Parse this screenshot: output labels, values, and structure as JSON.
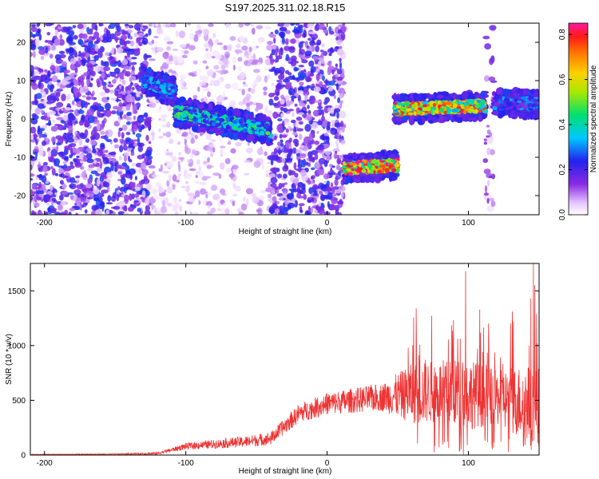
{
  "title": "S197.2025.311.02.18.R15",
  "colors": {
    "snr_line": "#ee3333",
    "background": "#ffffff",
    "axis": "#000000"
  },
  "colorbar": {
    "label": "Normalized spectral amplitude",
    "range": [
      0,
      0.85
    ],
    "ticks": [
      0.0,
      0.2,
      0.4,
      0.6,
      0.8
    ],
    "tick_labels": [
      "0.0",
      "0.2",
      "0.4",
      "0.6",
      "0.8"
    ],
    "colormap": "rainbow (white-violet-blue-cyan-green-yellow-orange-red-magenta)"
  },
  "chart_data": [
    {
      "type": "heatmap",
      "name": "spectrogram",
      "title": "S197.2025.311.02.18.R15",
      "xlabel": "Height of straight line (km)",
      "ylabel": "Frequency (Hz)",
      "xlim": [
        -210,
        150
      ],
      "ylim": [
        -25,
        25
      ],
      "xticks": [
        -200,
        -100,
        0,
        100
      ],
      "xtick_labels": [
        "-200",
        "-100",
        "0",
        "100"
      ],
      "yticks": [
        -20,
        -10,
        0,
        10,
        20
      ],
      "ytick_labels": [
        "-20",
        "-10",
        "0",
        "10",
        "20"
      ],
      "noise_regions": [
        {
          "x": [
            -210,
            -125
          ],
          "level": 0.15
        },
        {
          "x": [
            -125,
            -40
          ],
          "level": 0.05
        },
        {
          "x": [
            -40,
            12
          ],
          "level": 0.15
        },
        {
          "x": [
            112,
            118
          ],
          "level": 0.1
        }
      ],
      "bright_tracks": [
        {
          "x": [
            -130,
            -108
          ],
          "freq": [
            10,
            7
          ],
          "peak": 0.35
        },
        {
          "x": [
            -108,
            -40
          ],
          "freq": [
            2,
            -3
          ],
          "peak": 0.45
        },
        {
          "x": [
            12,
            50
          ],
          "freq": [
            -13,
            -12
          ],
          "peak": 0.85
        },
        {
          "x": [
            48,
            112
          ],
          "freq": [
            2.5,
            3.5
          ],
          "peak": 0.8
        },
        {
          "x": [
            118,
            150
          ],
          "freq": [
            4,
            4
          ],
          "peak": 0.3
        }
      ]
    },
    {
      "type": "line",
      "name": "snr",
      "xlabel": "Height of straight line (km)",
      "ylabel": "SNR (10 * v/v)",
      "xlim": [
        -210,
        150
      ],
      "ylim": [
        0,
        1750
      ],
      "xticks": [
        -200,
        -100,
        0,
        100
      ],
      "xtick_labels": [
        "-200",
        "-100",
        "0",
        "100"
      ],
      "yticks": [
        0,
        500,
        1000,
        1500
      ],
      "ytick_labels": [
        "0",
        "500",
        "1000",
        "1500"
      ],
      "series": [
        {
          "name": "SNR",
          "color": "#ee3333",
          "envelope": {
            "x": [
              -210,
              -150,
              -120,
              -100,
              -60,
              -40,
              -20,
              0,
              20,
              40,
              60,
              80,
              100,
              120,
              140,
              150
            ],
            "base": [
              5,
              8,
              15,
              80,
              120,
              150,
              380,
              470,
              500,
              530,
              560,
              580,
              560,
              520,
              480,
              450
            ],
            "amp": [
              5,
              8,
              20,
              60,
              100,
              120,
              170,
              200,
              230,
              260,
              550,
              580,
              650,
              500,
              700,
              700
            ]
          },
          "peaks": [
            {
              "x": 98,
              "y": 1680
            },
            {
              "x": 146,
              "y": 1750
            },
            {
              "x": 147,
              "y": 1550
            },
            {
              "x": 143,
              "y": 1000
            },
            {
              "x": 131,
              "y": 1310
            },
            {
              "x": 63,
              "y": 1340
            }
          ]
        }
      ]
    }
  ]
}
